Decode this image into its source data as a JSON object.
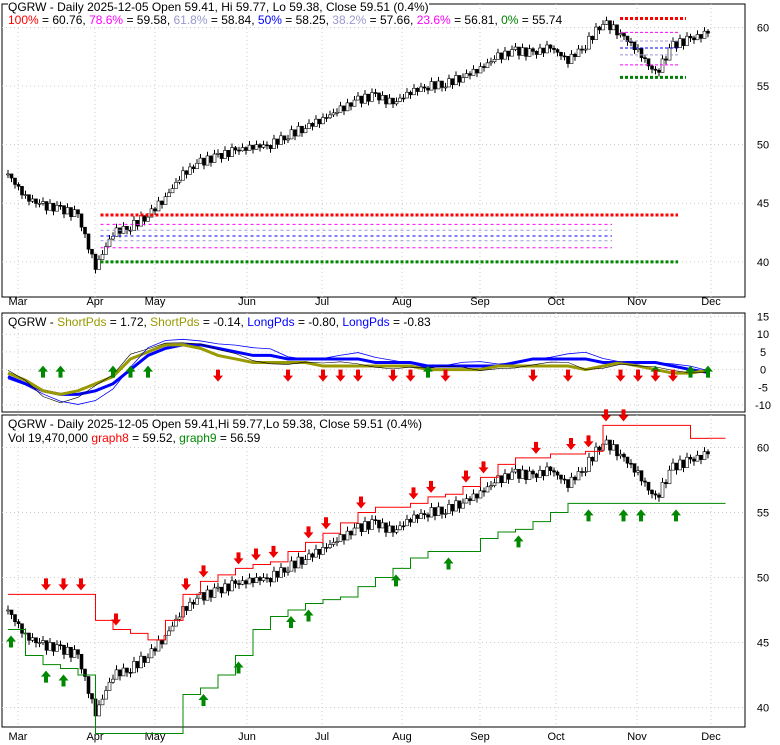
{
  "chart_data": [
    {
      "type": "candlestick",
      "panel": "price-fib",
      "title": "QGRW - Daily 2025-12-05 Open 59.41, Hi 59.77, Lo 59.38, Close 59.51 (0.4%)",
      "fib_legend": [
        {
          "label": "100%",
          "value": "60.76",
          "color": "#ff0000",
          "level": 60.76
        },
        {
          "label": "78.6%",
          "value": "59.58",
          "color": "#ff00ff",
          "level": 59.58
        },
        {
          "label": "61.8%",
          "value": "58.84",
          "color": "#9999cc",
          "level": 58.84
        },
        {
          "label": "50%",
          "value": "58.25",
          "color": "#0000ff",
          "level": 58.25
        },
        {
          "label": "38.2%",
          "value": "57.66",
          "color": "#9999cc",
          "level": 57.66
        },
        {
          "label": "23.6%",
          "value": "56.81",
          "color": "#ff00ff",
          "level": 56.81
        },
        {
          "label": "0%",
          "value": "55.74",
          "color": "#008000",
          "level": 55.74
        }
      ],
      "old_fib": [
        44.0,
        43.2,
        42.7,
        42.2,
        41.8,
        41.2,
        40.0
      ],
      "yticks": [
        "60",
        "55",
        "50",
        "45",
        "40"
      ],
      "ylim": [
        37,
        62
      ]
    },
    {
      "type": "line",
      "panel": "oscillator",
      "title_prefix": "QGRW - ",
      "legend": [
        {
          "label": "ShortPds",
          "value": " = 1.72, ",
          "color": "#999900"
        },
        {
          "label": "ShortPds",
          "value": " = -0.14, ",
          "color": "#999900"
        },
        {
          "label": "LongPds",
          "value": " = -0.80, ",
          "color": "#0000ff"
        },
        {
          "label": "LongPds",
          "value": " = -0.83",
          "color": "#0000ff"
        }
      ],
      "yticks": [
        "15",
        "10",
        "5",
        "0",
        "-5",
        "-10"
      ],
      "ylim": [
        -12,
        16
      ],
      "long": [
        -2,
        -4,
        -6,
        -7,
        -7,
        -6,
        -4,
        0,
        4,
        6,
        7,
        7,
        6,
        5,
        4,
        4,
        3,
        3,
        3,
        3,
        3,
        2,
        2,
        2,
        1,
        1,
        1,
        1,
        1,
        2,
        3,
        3,
        3,
        3,
        2,
        2,
        2,
        2,
        1,
        0,
        -0.8
      ],
      "short": [
        -1,
        -3,
        -6,
        -7,
        -6,
        -4,
        -2,
        3,
        5,
        7,
        7,
        6,
        4,
        3,
        2,
        2,
        2,
        2,
        1,
        1,
        1,
        1,
        1,
        1,
        0,
        0,
        0,
        0,
        1,
        1,
        1,
        1,
        1,
        0,
        1,
        2,
        1,
        0,
        -1,
        -1,
        -0.14
      ],
      "up_arrows": [
        2,
        3,
        6,
        7,
        8,
        24,
        37,
        39,
        40
      ],
      "down_arrows": [
        12,
        16,
        18,
        19,
        20,
        22,
        23,
        25,
        30,
        32,
        35,
        36,
        37,
        38
      ]
    },
    {
      "type": "candlestick",
      "panel": "price-stops",
      "title": "QGRW - Daily 2025-12-05 Open 59.41,Hi 59.77,Lo 59.38, Close 59.51 (0.4%)",
      "vol": "Vol 19,470,000",
      "graph8_label": "graph8",
      "graph8_value": " = 59.52, ",
      "graph9_label": "graph9",
      "graph9_value": " = 56.59",
      "yticks": [
        "60",
        "55",
        "50",
        "45",
        "40"
      ],
      "ylim": [
        38.5,
        62.5
      ],
      "up_arrows": [
        0,
        2,
        3,
        11,
        13,
        16,
        17,
        22,
        25,
        29,
        33,
        35,
        36,
        38
      ],
      "down_arrows": [
        2,
        3,
        4,
        6,
        10,
        11,
        13,
        14,
        15,
        17,
        18,
        20,
        23,
        24,
        26,
        27,
        30,
        32,
        33,
        34,
        35
      ]
    },
    {
      "xticks": [
        "Mar",
        "Apr",
        "May",
        "Jun",
        "Jul",
        "Aug",
        "Sep",
        "Oct",
        "Nov",
        "Dec"
      ],
      "weekly_close": [
        47.5,
        45.5,
        44.8,
        44.5,
        44.0,
        39.5,
        42.5,
        43.0,
        44.0,
        45.5,
        47.5,
        48.5,
        49.0,
        49.5,
        49.8,
        50.0,
        50.8,
        51.5,
        52.2,
        53.0,
        53.8,
        54.2,
        53.5,
        54.5,
        55.0,
        55.2,
        55.8,
        56.5,
        57.5,
        58.0,
        57.8,
        58.3,
        57.2,
        58.5,
        60.5,
        59.5,
        58.0,
        56.0,
        58.5,
        59.0,
        59.51
      ]
    }
  ]
}
